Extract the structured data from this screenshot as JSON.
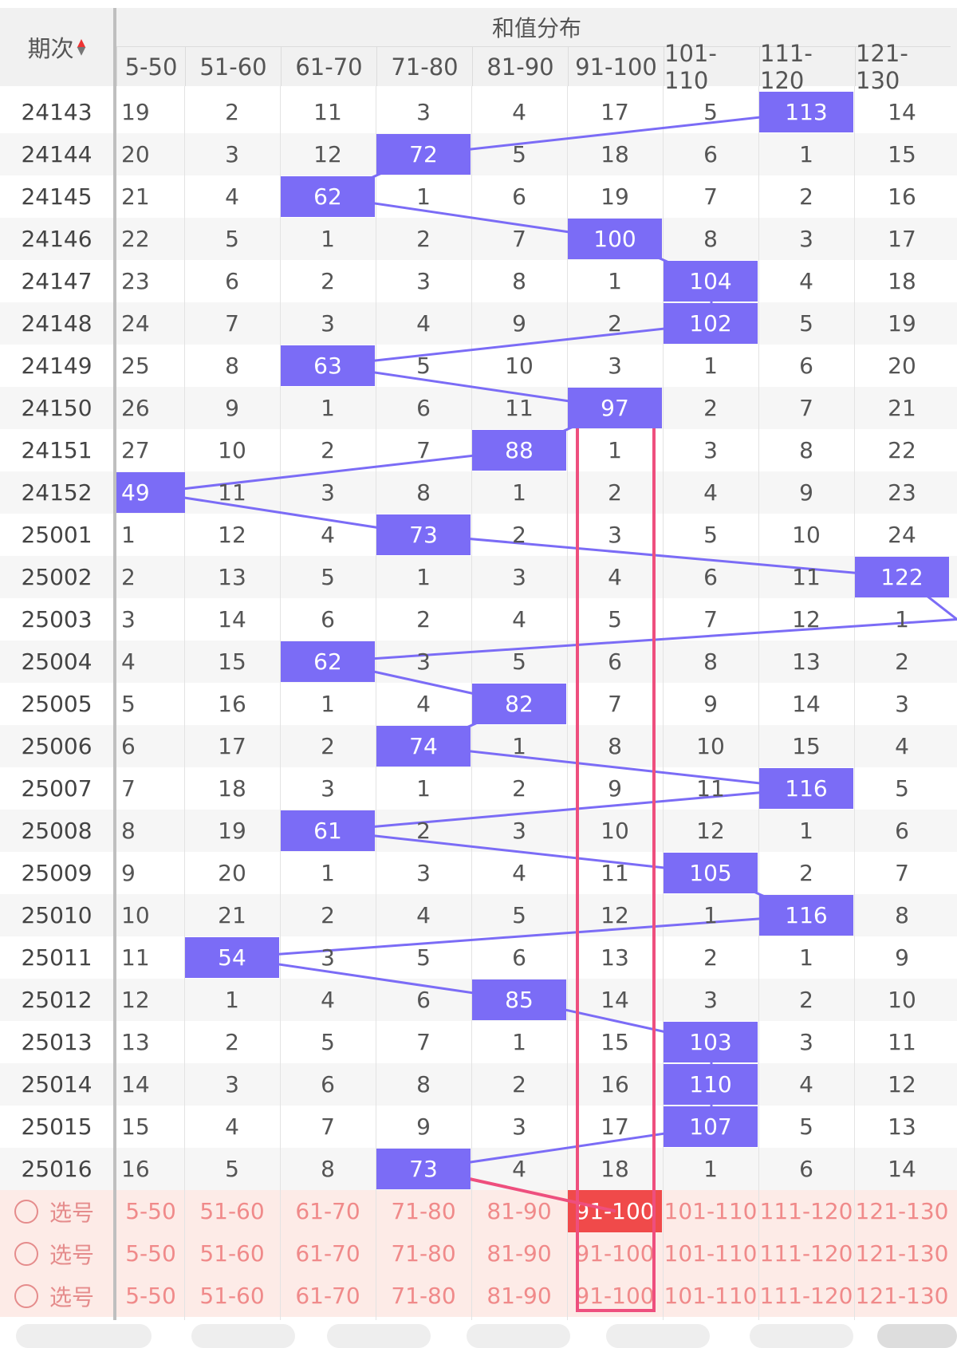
{
  "header": {
    "period_label": "期次",
    "group_title": "和值分布",
    "sort_icon": "sort-arrows-icon",
    "columns": [
      "5-50",
      "51-60",
      "61-70",
      "71-80",
      "81-90",
      "91-100",
      "101-110",
      "111-120",
      "121-130"
    ]
  },
  "rows": [
    {
      "period": "24143",
      "cells": [
        "19",
        "2",
        "11",
        "3",
        "4",
        "17",
        "5",
        "113",
        "14"
      ],
      "hit": 7
    },
    {
      "period": "24144",
      "cells": [
        "20",
        "3",
        "12",
        "72",
        "5",
        "18",
        "6",
        "1",
        "15"
      ],
      "hit": 3
    },
    {
      "period": "24145",
      "cells": [
        "21",
        "4",
        "62",
        "1",
        "6",
        "19",
        "7",
        "2",
        "16"
      ],
      "hit": 2
    },
    {
      "period": "24146",
      "cells": [
        "22",
        "5",
        "1",
        "2",
        "7",
        "100",
        "8",
        "3",
        "17"
      ],
      "hit": 5
    },
    {
      "period": "24147",
      "cells": [
        "23",
        "6",
        "2",
        "3",
        "8",
        "1",
        "104",
        "4",
        "18"
      ],
      "hit": 6
    },
    {
      "period": "24148",
      "cells": [
        "24",
        "7",
        "3",
        "4",
        "9",
        "2",
        "102",
        "5",
        "19"
      ],
      "hit": 6
    },
    {
      "period": "24149",
      "cells": [
        "25",
        "8",
        "63",
        "5",
        "10",
        "3",
        "1",
        "6",
        "20"
      ],
      "hit": 2
    },
    {
      "period": "24150",
      "cells": [
        "26",
        "9",
        "1",
        "6",
        "11",
        "97",
        "2",
        "7",
        "21"
      ],
      "hit": 5
    },
    {
      "period": "24151",
      "cells": [
        "27",
        "10",
        "2",
        "7",
        "88",
        "1",
        "3",
        "8",
        "22"
      ],
      "hit": 4
    },
    {
      "period": "24152",
      "cells": [
        "49",
        "11",
        "3",
        "8",
        "1",
        "2",
        "4",
        "9",
        "23"
      ],
      "hit": 0
    },
    {
      "period": "25001",
      "cells": [
        "1",
        "12",
        "4",
        "73",
        "2",
        "3",
        "5",
        "10",
        "24"
      ],
      "hit": 3
    },
    {
      "period": "25002",
      "cells": [
        "2",
        "13",
        "5",
        "1",
        "3",
        "4",
        "6",
        "11",
        "122"
      ],
      "hit": 8
    },
    {
      "period": "25003",
      "cells": [
        "3",
        "14",
        "6",
        "2",
        "4",
        "5",
        "7",
        "12",
        "1"
      ],
      "hit": -1
    },
    {
      "period": "25004",
      "cells": [
        "4",
        "15",
        "62",
        "3",
        "5",
        "6",
        "8",
        "13",
        "2"
      ],
      "hit": 2
    },
    {
      "period": "25005",
      "cells": [
        "5",
        "16",
        "1",
        "4",
        "82",
        "7",
        "9",
        "14",
        "3"
      ],
      "hit": 4
    },
    {
      "period": "25006",
      "cells": [
        "6",
        "17",
        "2",
        "74",
        "1",
        "8",
        "10",
        "15",
        "4"
      ],
      "hit": 3
    },
    {
      "period": "25007",
      "cells": [
        "7",
        "18",
        "3",
        "1",
        "2",
        "9",
        "11",
        "116",
        "5"
      ],
      "hit": 7
    },
    {
      "period": "25008",
      "cells": [
        "8",
        "19",
        "61",
        "2",
        "3",
        "10",
        "12",
        "1",
        "6"
      ],
      "hit": 2
    },
    {
      "period": "25009",
      "cells": [
        "9",
        "20",
        "1",
        "3",
        "4",
        "11",
        "105",
        "2",
        "7"
      ],
      "hit": 6
    },
    {
      "period": "25010",
      "cells": [
        "10",
        "21",
        "2",
        "4",
        "5",
        "12",
        "1",
        "116",
        "8"
      ],
      "hit": 7
    },
    {
      "period": "25011",
      "cells": [
        "11",
        "54",
        "3",
        "5",
        "6",
        "13",
        "2",
        "1",
        "9"
      ],
      "hit": 1
    },
    {
      "period": "25012",
      "cells": [
        "12",
        "1",
        "4",
        "6",
        "85",
        "14",
        "3",
        "2",
        "10"
      ],
      "hit": 4
    },
    {
      "period": "25013",
      "cells": [
        "13",
        "2",
        "5",
        "7",
        "1",
        "15",
        "103",
        "3",
        "11"
      ],
      "hit": 6
    },
    {
      "period": "25014",
      "cells": [
        "14",
        "3",
        "6",
        "8",
        "2",
        "16",
        "110",
        "4",
        "12"
      ],
      "hit": 6
    },
    {
      "period": "25015",
      "cells": [
        "15",
        "4",
        "7",
        "9",
        "3",
        "17",
        "107",
        "5",
        "13"
      ],
      "hit": 6
    },
    {
      "period": "25016",
      "cells": [
        "16",
        "5",
        "8",
        "73",
        "4",
        "18",
        "1",
        "6",
        "14"
      ],
      "hit": 3
    }
  ],
  "selection": {
    "label": "选号",
    "rows": [
      {
        "active": 5
      },
      {
        "active": -1
      },
      {
        "active": -1
      }
    ]
  },
  "colors": {
    "hit": "#7b6cf6",
    "line": "#7b6cf6",
    "highlight_box": "#ee4f7e",
    "selected_cell": "#f04a4a",
    "selection_text": "#f08a8a"
  }
}
